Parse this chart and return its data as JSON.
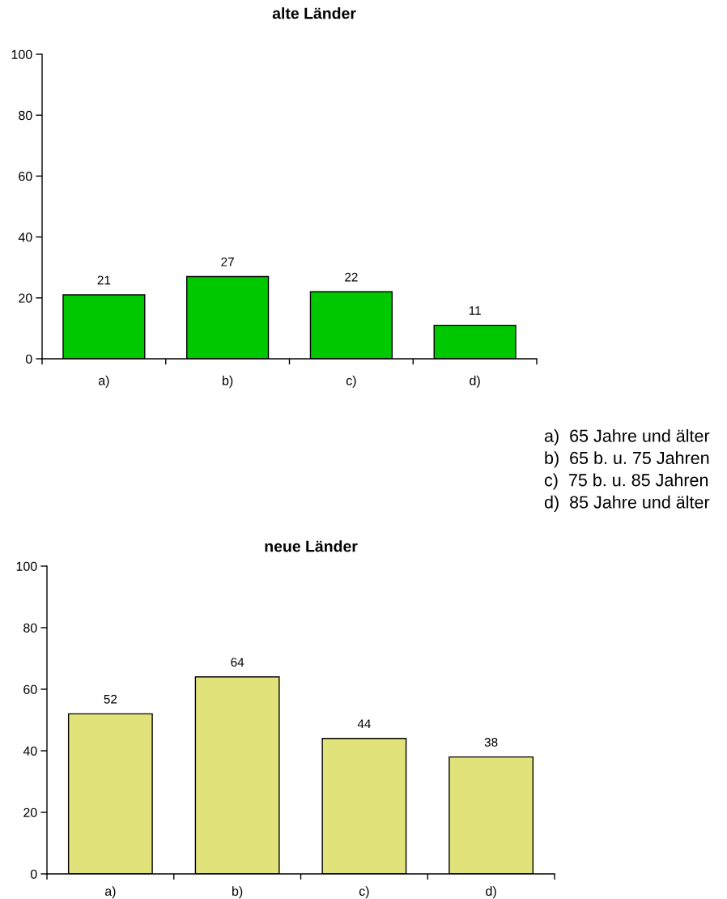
{
  "chart_data": [
    {
      "type": "bar",
      "title": "alte Länder",
      "categories": [
        "a)",
        "b)",
        "c)",
        "d)"
      ],
      "values": [
        21,
        27,
        22,
        11
      ],
      "color": "#00c800",
      "ylim": [
        0,
        100
      ],
      "yticks": [
        0,
        20,
        40,
        60,
        80,
        100
      ],
      "grid": false,
      "legend": false,
      "data_labels": true,
      "annotations": [
        "a)  65 Jahre und älter",
        "b)  65 b. u. 75 Jahren",
        "c)  75 b. u. 85 Jahren",
        "d)  85 Jahre und älter"
      ]
    },
    {
      "type": "bar",
      "title": "neue Länder",
      "categories": [
        "a)",
        "b)",
        "c)",
        "d)"
      ],
      "values": [
        52,
        64,
        44,
        38
      ],
      "color": "#e2e27a",
      "ylim": [
        0,
        100
      ],
      "yticks": [
        0,
        20,
        40,
        60,
        80,
        100
      ],
      "grid": false,
      "legend": false,
      "data_labels": true
    }
  ]
}
